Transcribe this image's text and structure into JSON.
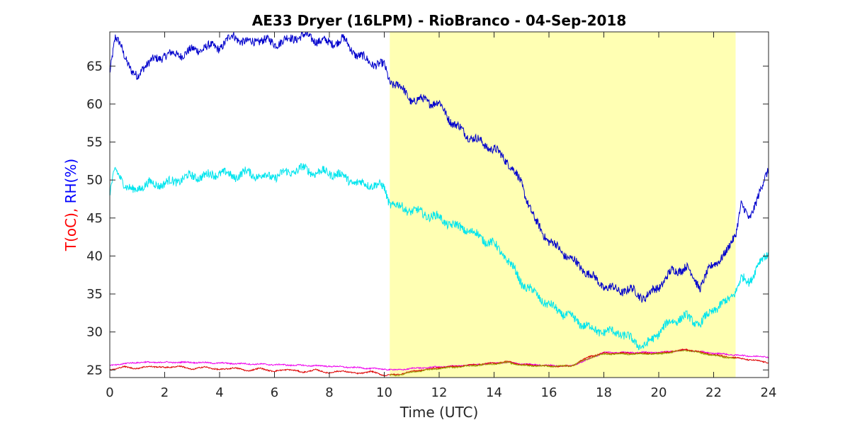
{
  "chart_data": {
    "type": "line",
    "title": "AE33 Dryer (16LPM)  - RioBranco - 04-Sep-2018",
    "xlabel": "Time (UTC)",
    "ylabel_parts": [
      {
        "text": "T(oC),",
        "color": "#ff0000"
      },
      {
        "text": " RH(%)",
        "color": "#0000ff"
      }
    ],
    "xlim": [
      0,
      24
    ],
    "ylim": [
      24,
      69.5
    ],
    "xticks": [
      0,
      2,
      4,
      6,
      8,
      10,
      12,
      14,
      16,
      18,
      20,
      22,
      24
    ],
    "yticks": [
      25,
      30,
      35,
      40,
      45,
      50,
      55,
      60,
      65
    ],
    "grid": false,
    "highlight_band": {
      "x_start": 10.2,
      "x_end": 22.8,
      "color": "#ffffb3"
    },
    "series": [
      {
        "color": "#0000cc",
        "x": [
          0,
          0.2,
          0.4,
          0.6,
          0.8,
          1.0,
          1.2,
          1.5,
          2.0,
          2.5,
          3.0,
          3.5,
          4.0,
          4.5,
          5.0,
          5.5,
          6.0,
          6.5,
          7.0,
          7.5,
          8.0,
          8.5,
          9.0,
          9.5,
          10.0,
          10.2,
          10.5,
          11.0,
          11.5,
          12.0,
          12.5,
          13.0,
          13.5,
          14.0,
          14.5,
          15.0,
          15.5,
          16.0,
          16.5,
          17.0,
          17.5,
          18.0,
          18.5,
          19.0,
          19.5,
          20.0,
          20.5,
          21.0,
          21.5,
          22.0,
          22.5,
          22.8,
          23.0,
          23.3,
          23.6,
          24.0
        ],
        "y": [
          64,
          68.5,
          68,
          66,
          64,
          63.5,
          65,
          65.5,
          66.5,
          66.5,
          67,
          67.5,
          67.5,
          69,
          68,
          68.5,
          68,
          68.5,
          69,
          68.5,
          68,
          68.5,
          66.5,
          65.5,
          65,
          63,
          62.5,
          60.5,
          60.5,
          60,
          57.5,
          56,
          55,
          54,
          52.5,
          49.5,
          44.5,
          42,
          40.5,
          39,
          37.5,
          36,
          35.5,
          35.5,
          34.5,
          36,
          38,
          38.5,
          36,
          39,
          40.5,
          43,
          47,
          44.5,
          48,
          51
        ]
      },
      {
        "color": "#00e5ee",
        "x": [
          0,
          0.2,
          0.4,
          0.6,
          0.8,
          1.0,
          1.5,
          2.0,
          2.5,
          3.0,
          3.5,
          4.0,
          4.5,
          5.0,
          5.5,
          6.0,
          6.5,
          7.0,
          7.5,
          8.0,
          8.5,
          9.0,
          9.5,
          10.0,
          10.2,
          10.5,
          11.0,
          11.5,
          12.0,
          12.5,
          13.0,
          13.5,
          14.0,
          14.5,
          15.0,
          15.5,
          16.0,
          16.5,
          17.0,
          17.5,
          18.0,
          18.5,
          19.0,
          19.5,
          20.0,
          20.5,
          21.0,
          21.5,
          22.0,
          22.5,
          22.8,
          23.0,
          23.3,
          23.6,
          24.0
        ],
        "y": [
          48,
          51.5,
          50.5,
          49,
          48.5,
          49,
          49.5,
          49.5,
          50,
          50.5,
          50.5,
          51,
          50.5,
          51,
          50.5,
          50.5,
          51,
          51.5,
          51,
          51,
          50.5,
          49.5,
          49.5,
          49,
          47,
          46.5,
          46,
          45.5,
          45,
          44,
          43.5,
          42.5,
          41.5,
          39.5,
          36.5,
          35,
          33.5,
          32.5,
          31.5,
          30.5,
          30,
          30,
          29,
          28,
          30,
          31.5,
          32,
          31,
          33,
          34,
          35.5,
          37,
          36.5,
          39,
          40
        ]
      },
      {
        "color": "#ee00ee",
        "x": [
          0,
          1,
          2,
          3,
          4,
          5,
          6,
          7,
          8,
          9,
          10,
          10.5,
          11,
          12,
          13,
          14,
          14.5,
          15,
          16,
          16.8,
          17.5,
          18,
          19,
          20,
          21,
          22,
          23,
          24
        ],
        "y": [
          25.6,
          26,
          26,
          26,
          25.9,
          25.8,
          25.7,
          25.6,
          25.5,
          25.3,
          25.1,
          25,
          25.2,
          25.4,
          25.6,
          25.9,
          26,
          25.8,
          25.6,
          25.5,
          26.5,
          27.3,
          27.3,
          27.3,
          27.6,
          27.2,
          26.9,
          26.7
        ]
      },
      {
        "color": "#dd0000",
        "x": [
          0,
          0.5,
          1,
          1.5,
          2,
          2.5,
          3,
          3.5,
          4,
          4.5,
          5,
          5.5,
          6,
          6.5,
          7,
          7.5,
          8,
          8.5,
          9,
          9.5,
          10,
          10.5,
          11,
          12,
          13,
          14,
          14.5,
          15,
          16,
          16.8,
          17.5,
          18,
          19,
          20,
          21,
          22,
          23,
          24
        ],
        "y": [
          25,
          25.4,
          25.2,
          25.5,
          25.3,
          25.5,
          25.1,
          25.4,
          25,
          25.3,
          24.9,
          25.2,
          24.8,
          25.1,
          24.7,
          25,
          24.6,
          24.9,
          24.5,
          24.8,
          24.3,
          24.4,
          24.8,
          25.3,
          25.6,
          25.9,
          26.1,
          25.7,
          25.5,
          25.5,
          26.8,
          27.2,
          27.2,
          27.2,
          27.7,
          27,
          26.5,
          26
        ]
      },
      {
        "color": "#999900",
        "x": [
          10.2,
          10.5,
          11,
          12,
          13,
          14,
          14.5,
          15,
          16,
          16.8,
          17.5,
          18,
          19,
          20,
          21,
          22,
          22.8
        ],
        "y": [
          24.3,
          24.3,
          24.7,
          25.2,
          25.5,
          25.8,
          26,
          25.6,
          25.5,
          25.5,
          26.6,
          27.1,
          27.1,
          27.1,
          27.6,
          26.9,
          26.5
        ]
      }
    ]
  }
}
